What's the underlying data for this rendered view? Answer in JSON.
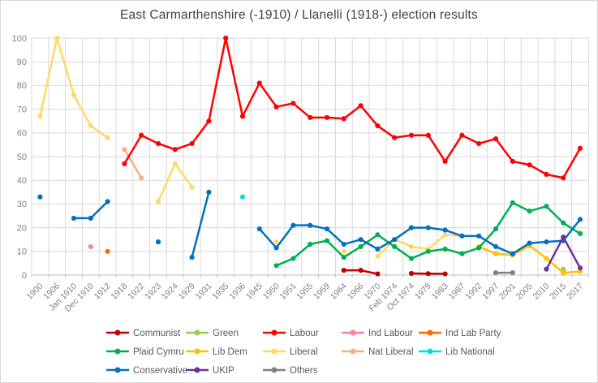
{
  "title": "East Carmarthenshire (-1910) / Llanelli (1918-) election results",
  "chart_data": {
    "type": "line",
    "title": "East Carmarthenshire (-1910) / Llanelli (1918-) election results",
    "xlabel": "",
    "ylabel": "",
    "ylim": [
      0,
      100
    ],
    "y_tick_step": 10,
    "grid": true,
    "legend_position": "bottom",
    "categories": [
      "1900",
      "1906",
      "Jan 1910",
      "Dec 1910",
      "1912",
      "1918",
      "1922",
      "1923",
      "1924",
      "1929",
      "1931",
      "1935",
      "1936",
      "1945",
      "1950",
      "1951",
      "1955",
      "1959",
      "1964",
      "1966",
      "1970",
      "Feb 1974",
      "Oct 1974",
      "1979",
      "1983",
      "1987",
      "1992",
      "1997",
      "2001",
      "2005",
      "2010",
      "2015",
      "2017"
    ],
    "series": [
      {
        "name": "Communist",
        "color": "#c00000",
        "values": [
          null,
          null,
          null,
          null,
          null,
          null,
          null,
          null,
          null,
          null,
          null,
          null,
          null,
          null,
          null,
          null,
          null,
          null,
          2,
          2,
          0.5,
          null,
          0.7,
          0.6,
          0.5,
          null,
          null,
          null,
          null,
          null,
          null,
          null,
          null
        ]
      },
      {
        "name": "Green",
        "color": "#92d050",
        "values": [
          null,
          null,
          null,
          null,
          null,
          null,
          null,
          null,
          null,
          null,
          null,
          null,
          null,
          null,
          null,
          null,
          null,
          null,
          null,
          null,
          null,
          null,
          null,
          null,
          null,
          null,
          null,
          null,
          null,
          null,
          null,
          2.5,
          null
        ]
      },
      {
        "name": "Labour",
        "color": "#ff0000",
        "values": [
          null,
          null,
          null,
          null,
          null,
          47,
          59,
          55.5,
          53,
          55.5,
          65,
          100,
          67,
          81,
          71,
          72.5,
          66.5,
          66.5,
          66,
          71.5,
          63,
          58,
          59,
          59,
          48,
          59,
          55.5,
          57.5,
          48,
          46.5,
          42.5,
          41,
          53.5
        ]
      },
      {
        "name": "Ind Labour",
        "color": "#ff8099",
        "values": [
          null,
          null,
          null,
          12,
          null,
          null,
          null,
          null,
          null,
          null,
          null,
          null,
          null,
          null,
          null,
          null,
          null,
          null,
          null,
          null,
          null,
          null,
          null,
          null,
          null,
          null,
          null,
          null,
          null,
          null,
          null,
          null,
          null
        ]
      },
      {
        "name": "Ind Lab Party",
        "color": "#ff6600",
        "values": [
          null,
          null,
          null,
          null,
          10,
          null,
          null,
          null,
          null,
          null,
          null,
          null,
          null,
          null,
          null,
          null,
          null,
          null,
          null,
          null,
          null,
          null,
          null,
          null,
          null,
          null,
          null,
          null,
          null,
          null,
          null,
          null,
          null
        ]
      },
      {
        "name": "Plaid Cymru",
        "color": "#00b050",
        "values": [
          null,
          null,
          null,
          null,
          null,
          null,
          null,
          null,
          null,
          null,
          null,
          null,
          null,
          null,
          4,
          7,
          13,
          14.5,
          7.5,
          12,
          17,
          12,
          7,
          10,
          11,
          9,
          11.5,
          19.5,
          30.5,
          27,
          29,
          22,
          17.5
        ]
      },
      {
        "name": "Lib Dem",
        "color": "#ffc000",
        "values": [
          null,
          null,
          null,
          null,
          null,
          null,
          null,
          null,
          null,
          null,
          null,
          null,
          null,
          null,
          null,
          null,
          null,
          null,
          null,
          null,
          null,
          null,
          null,
          null,
          null,
          null,
          12,
          9,
          8.5,
          12.5,
          7,
          1,
          1.5
        ]
      },
      {
        "name": "Liberal",
        "color": "#ffd966",
        "values": [
          67,
          100,
          76,
          63,
          58,
          null,
          null,
          31,
          47,
          37,
          null,
          null,
          null,
          null,
          14,
          null,
          null,
          null,
          10,
          null,
          8,
          15,
          12,
          11,
          17,
          16.5,
          null,
          null,
          null,
          null,
          null,
          null,
          null
        ]
      },
      {
        "name": "Nat Liberal",
        "color": "#f4b183",
        "values": [
          null,
          null,
          null,
          null,
          null,
          53,
          41,
          null,
          null,
          null,
          null,
          null,
          null,
          null,
          null,
          null,
          null,
          null,
          null,
          null,
          null,
          null,
          null,
          null,
          null,
          null,
          null,
          null,
          null,
          null,
          null,
          null,
          null
        ]
      },
      {
        "name": "Lib National",
        "color": "#00e0e0",
        "values": [
          null,
          null,
          null,
          null,
          null,
          null,
          null,
          null,
          null,
          null,
          null,
          null,
          33,
          null,
          null,
          null,
          null,
          null,
          null,
          null,
          null,
          null,
          null,
          null,
          null,
          null,
          null,
          null,
          null,
          null,
          null,
          null,
          null
        ]
      },
      {
        "name": "Conservative",
        "color": "#0070c0",
        "values": [
          33,
          null,
          24,
          24,
          31,
          null,
          null,
          14,
          null,
          7.5,
          35,
          null,
          null,
          19.5,
          11.5,
          21,
          21,
          19.5,
          13,
          15,
          11,
          15,
          20,
          20,
          19,
          16.5,
          16.5,
          12,
          9,
          13.5,
          14,
          14.5,
          23.5
        ]
      },
      {
        "name": "UKIP",
        "color": "#7030a0",
        "values": [
          null,
          null,
          null,
          null,
          null,
          null,
          null,
          null,
          null,
          null,
          null,
          null,
          null,
          null,
          null,
          null,
          null,
          null,
          null,
          null,
          null,
          null,
          null,
          null,
          null,
          null,
          null,
          null,
          null,
          null,
          2.5,
          16,
          3
        ]
      },
      {
        "name": "Others",
        "color": "#808080",
        "values": [
          null,
          null,
          null,
          null,
          null,
          null,
          null,
          null,
          null,
          null,
          null,
          null,
          null,
          null,
          null,
          null,
          null,
          null,
          null,
          null,
          null,
          null,
          null,
          null,
          null,
          null,
          null,
          1,
          1,
          null,
          null,
          1.5,
          null
        ]
      }
    ]
  },
  "style": {
    "grid_color": "#d9d9d9",
    "axis_color": "#bfbfbf",
    "tick_label_color": "#808080",
    "legend_text_color": "#595959",
    "title_color": "#404040"
  }
}
